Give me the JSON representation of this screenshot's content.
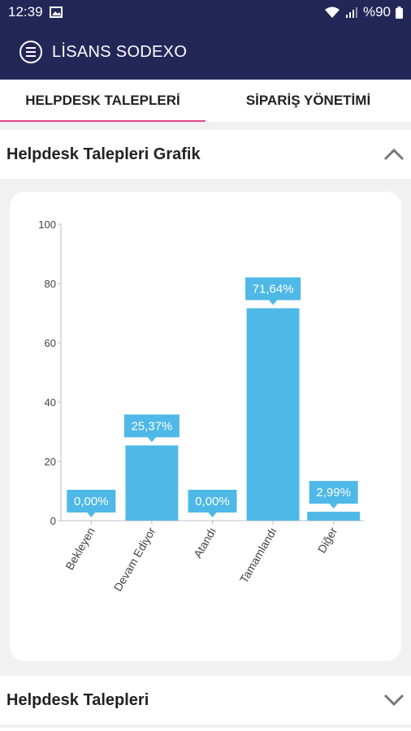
{
  "status_bar": {
    "time": "12:39",
    "battery": "%90"
  },
  "app": {
    "title": "LİSANS SODEXO"
  },
  "tabs": [
    {
      "label": "HELPDESK TALEPLERİ"
    },
    {
      "label": "SİPARİŞ YÖNETİMİ"
    }
  ],
  "sections": {
    "chart_title": "Helpdesk Talepleri Grafik",
    "list_title": "Helpdesk Talepleri"
  },
  "colors": {
    "bar": "#4eb8e7",
    "accent": "#e7448a",
    "header": "#232758"
  },
  "chart_data": {
    "type": "bar",
    "categories": [
      "Bekleyen",
      "Devam Ediyor",
      "Atandı",
      "Tamamlandı",
      "Diğer"
    ],
    "values": [
      0,
      25.37,
      0,
      71.64,
      2.99
    ],
    "data_labels": [
      "0,00%",
      "25,37%",
      "0,00%",
      "71,64%",
      "2,99%"
    ],
    "ylim": [
      0,
      100
    ],
    "yticks": [
      0,
      20,
      40,
      60,
      80,
      100
    ],
    "title": "",
    "xlabel": "",
    "ylabel": "",
    "grid": false,
    "legend": "none"
  }
}
